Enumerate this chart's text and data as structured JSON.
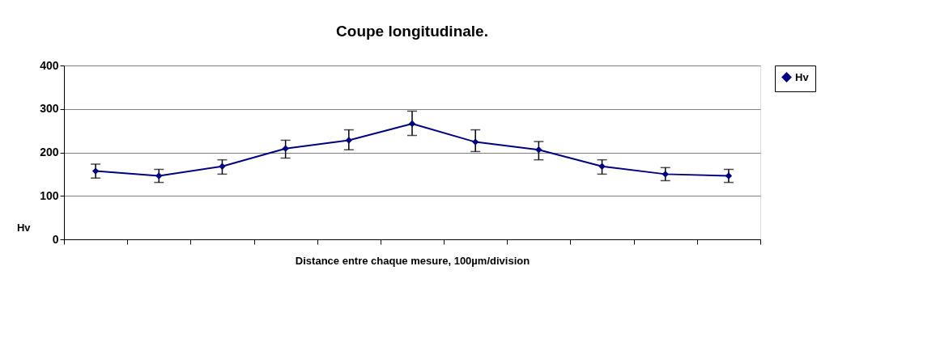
{
  "chart_data": {
    "type": "line",
    "title": "Coupe longitudinale.",
    "xlabel": "Distance entre chaque mesure, 100µm/division",
    "ylabel": "Hv",
    "categories": [
      null,
      null,
      null,
      null,
      null,
      null,
      null,
      null,
      null,
      null,
      null
    ],
    "series": [
      {
        "name": "Hv",
        "color": "#000080",
        "values": [
          157,
          146,
          168,
          209,
          228,
          266,
          224,
          206,
          168,
          150,
          146
        ],
        "errors": [
          [
            141,
            173
          ],
          [
            131,
            161
          ],
          [
            150,
            183
          ],
          [
            187,
            228
          ],
          [
            206,
            252
          ],
          [
            239,
            295
          ],
          [
            202,
            252
          ],
          [
            183,
            225
          ],
          [
            150,
            183
          ],
          [
            135,
            165
          ],
          [
            131,
            161
          ]
        ]
      }
    ],
    "ylim": [
      0,
      400
    ],
    "yticks": [
      0,
      100,
      200,
      300,
      400
    ],
    "grid": "y",
    "legend": "right",
    "marker": "diamond",
    "line_style": "solid",
    "tick_labels": "y"
  }
}
